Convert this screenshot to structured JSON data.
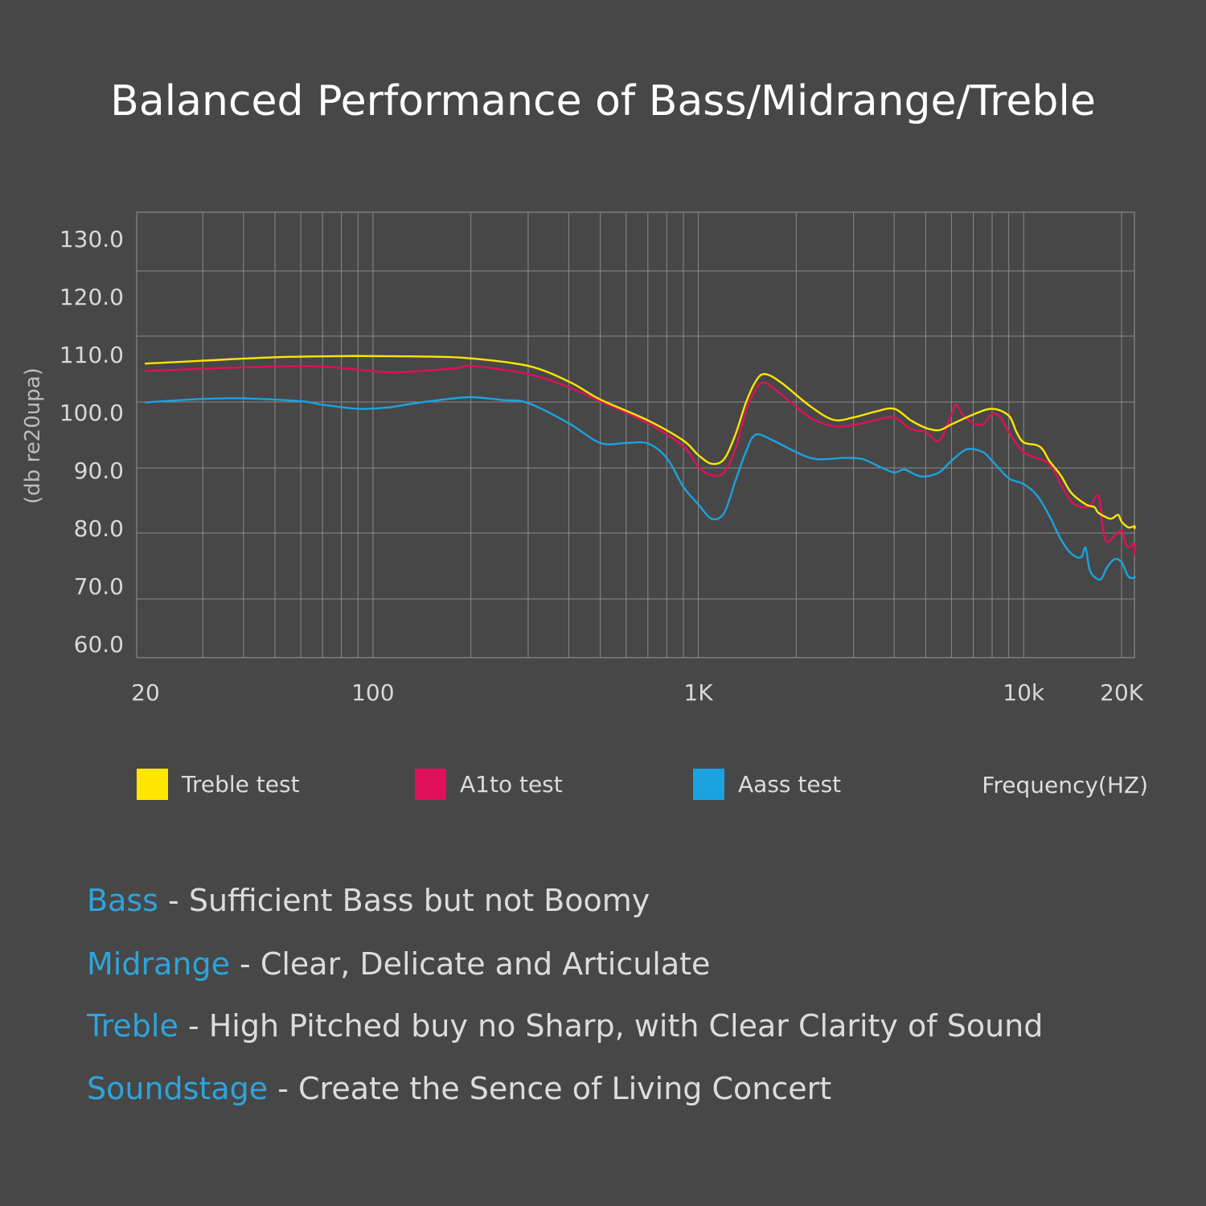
{
  "colors": {
    "background": "#474747",
    "grid": "#8a8a8a",
    "treble": "#ffe600",
    "a1to": "#e0105a",
    "aass": "#1aa3e0",
    "accent_text": "#2da4dc"
  },
  "chart_data": {
    "type": "line",
    "title": "Balanced Performance of Bass/Midrange/Treble",
    "ylabel": "(db re20upa)",
    "xlabel": "Frequency(HZ)",
    "x_scale": "log",
    "xlim": [
      20,
      20000
    ],
    "ylim": [
      60,
      130
    ],
    "grid": true,
    "legend_position": "bottom",
    "y_ticks": [
      "130.0",
      "120.0",
      "110.0",
      "100.0",
      "90.0",
      "80.0",
      "70.0",
      "60.0"
    ],
    "x_ticks": [
      {
        "label": "20",
        "value": 20
      },
      {
        "label": "100",
        "value": 100
      },
      {
        "label": "1K",
        "value": 1000
      },
      {
        "label": "10k",
        "value": 10000
      },
      {
        "label": "20K",
        "value": 20000
      }
    ],
    "series": [
      {
        "name": "Treble test",
        "color_key": "treble",
        "points": [
          [
            20,
            108.3
          ],
          [
            30,
            108.8
          ],
          [
            50,
            109.4
          ],
          [
            80,
            109.6
          ],
          [
            100,
            109.6
          ],
          [
            150,
            109.5
          ],
          [
            200,
            109.2
          ],
          [
            300,
            107.9
          ],
          [
            400,
            105.2
          ],
          [
            500,
            102.1
          ],
          [
            700,
            98.5
          ],
          [
            900,
            95.0
          ],
          [
            1000,
            92.5
          ],
          [
            1100,
            91.0
          ],
          [
            1200,
            91.8
          ],
          [
            1300,
            96.0
          ],
          [
            1400,
            101.5
          ],
          [
            1500,
            105.2
          ],
          [
            1600,
            106.5
          ],
          [
            1800,
            105.0
          ],
          [
            2200,
            101.0
          ],
          [
            2600,
            98.6
          ],
          [
            3000,
            99.0
          ],
          [
            3500,
            100.0
          ],
          [
            4000,
            100.5
          ],
          [
            4500,
            98.5
          ],
          [
            5000,
            97.2
          ],
          [
            5500,
            96.8
          ],
          [
            6000,
            97.8
          ],
          [
            7000,
            99.5
          ],
          [
            8000,
            100.5
          ],
          [
            9000,
            99.3
          ],
          [
            9500,
            96.5
          ],
          [
            10000,
            94.7
          ],
          [
            11000,
            94.2
          ],
          [
            11500,
            93.3
          ],
          [
            12000,
            91.5
          ],
          [
            13000,
            89.0
          ],
          [
            14000,
            86.0
          ],
          [
            15500,
            84.0
          ],
          [
            16500,
            83.5
          ],
          [
            17000,
            82.5
          ],
          [
            18500,
            81.5
          ],
          [
            19500,
            82.2
          ],
          [
            20000,
            81.0
          ],
          [
            21000,
            80.0
          ],
          [
            22000,
            80.2
          ],
          [
            23500,
            79.8
          ]
        ]
      },
      {
        "name": "A1to test",
        "color_key": "a1to",
        "points": [
          [
            20,
            107.0
          ],
          [
            30,
            107.4
          ],
          [
            50,
            107.8
          ],
          [
            70,
            107.8
          ],
          [
            100,
            107.0
          ],
          [
            120,
            106.8
          ],
          [
            180,
            107.5
          ],
          [
            200,
            107.9
          ],
          [
            300,
            106.5
          ],
          [
            400,
            104.2
          ],
          [
            500,
            101.8
          ],
          [
            700,
            98.0
          ],
          [
            900,
            94.0
          ],
          [
            1000,
            90.5
          ],
          [
            1100,
            89.0
          ],
          [
            1200,
            89.5
          ],
          [
            1300,
            93.5
          ],
          [
            1400,
            100.0
          ],
          [
            1500,
            103.8
          ],
          [
            1600,
            105.0
          ],
          [
            1800,
            103.0
          ],
          [
            2200,
            99.0
          ],
          [
            2600,
            97.5
          ],
          [
            3000,
            97.7
          ],
          [
            3500,
            98.5
          ],
          [
            4000,
            99.0
          ],
          [
            4500,
            97.0
          ],
          [
            5000,
            96.5
          ],
          [
            5500,
            95.0
          ],
          [
            6000,
            99.5
          ],
          [
            6200,
            101.2
          ],
          [
            6500,
            99.5
          ],
          [
            7000,
            98.0
          ],
          [
            7500,
            97.8
          ],
          [
            8000,
            99.6
          ],
          [
            8500,
            99.0
          ],
          [
            9000,
            96.5
          ],
          [
            10000,
            93.0
          ],
          [
            12000,
            91.0
          ],
          [
            13000,
            87.5
          ],
          [
            14000,
            84.5
          ],
          [
            15000,
            83.5
          ],
          [
            16000,
            83.7
          ],
          [
            17000,
            85.5
          ],
          [
            17500,
            80.0
          ],
          [
            18000,
            77.5
          ],
          [
            19000,
            78.5
          ],
          [
            20000,
            79.5
          ],
          [
            20500,
            77.5
          ],
          [
            21000,
            76.5
          ],
          [
            22000,
            77.2
          ],
          [
            23500,
            75.3
          ]
        ]
      },
      {
        "name": "Aass test",
        "color_key": "aass",
        "points": [
          [
            20,
            101.6
          ],
          [
            30,
            102.2
          ],
          [
            40,
            102.3
          ],
          [
            60,
            101.8
          ],
          [
            70,
            101.2
          ],
          [
            90,
            100.5
          ],
          [
            110,
            100.7
          ],
          [
            130,
            101.3
          ],
          [
            160,
            102.0
          ],
          [
            200,
            102.5
          ],
          [
            250,
            102.0
          ],
          [
            300,
            101.5
          ],
          [
            400,
            98.0
          ],
          [
            500,
            94.6
          ],
          [
            600,
            94.6
          ],
          [
            700,
            94.5
          ],
          [
            800,
            92.0
          ],
          [
            900,
            87.0
          ],
          [
            1000,
            84.0
          ],
          [
            1100,
            81.5
          ],
          [
            1200,
            82.5
          ],
          [
            1300,
            88.0
          ],
          [
            1400,
            93.0
          ],
          [
            1500,
            96.0
          ],
          [
            1700,
            95.0
          ],
          [
            2000,
            93.0
          ],
          [
            2300,
            91.8
          ],
          [
            2800,
            92.0
          ],
          [
            3200,
            91.8
          ],
          [
            3600,
            90.5
          ],
          [
            4000,
            89.5
          ],
          [
            4300,
            90.0
          ],
          [
            4700,
            89.0
          ],
          [
            5000,
            88.8
          ],
          [
            5500,
            89.5
          ],
          [
            6000,
            91.5
          ],
          [
            6700,
            93.5
          ],
          [
            7500,
            93.0
          ],
          [
            8000,
            91.5
          ],
          [
            9000,
            88.5
          ],
          [
            10000,
            87.5
          ],
          [
            11000,
            85.5
          ],
          [
            12000,
            82.0
          ],
          [
            13000,
            78.0
          ],
          [
            14000,
            75.5
          ],
          [
            15000,
            74.8
          ],
          [
            15500,
            76.5
          ],
          [
            16000,
            72.5
          ],
          [
            17000,
            71.0
          ],
          [
            17500,
            71.5
          ],
          [
            18000,
            73.0
          ],
          [
            19000,
            74.5
          ],
          [
            20000,
            74.0
          ],
          [
            21000,
            71.5
          ],
          [
            22000,
            71.3
          ],
          [
            23500,
            71.5
          ]
        ]
      }
    ]
  },
  "legend": [
    {
      "label": "Treble test",
      "color_key": "treble"
    },
    {
      "label": "A1to test",
      "color_key": "a1to"
    },
    {
      "label": "Aass test",
      "color_key": "aass"
    }
  ],
  "descriptions": [
    {
      "term": "Bass",
      "text": " -  Sufficient Bass but not Boomy"
    },
    {
      "term": "Midrange",
      "text": " - Clear, Delicate and Articulate"
    },
    {
      "term": "Treble",
      "text": " - High Pitched buy no Sharp, with Clear Clarity of Sound"
    },
    {
      "term": "Soundstage",
      "text": " - Create the Sence of Living Concert"
    }
  ]
}
